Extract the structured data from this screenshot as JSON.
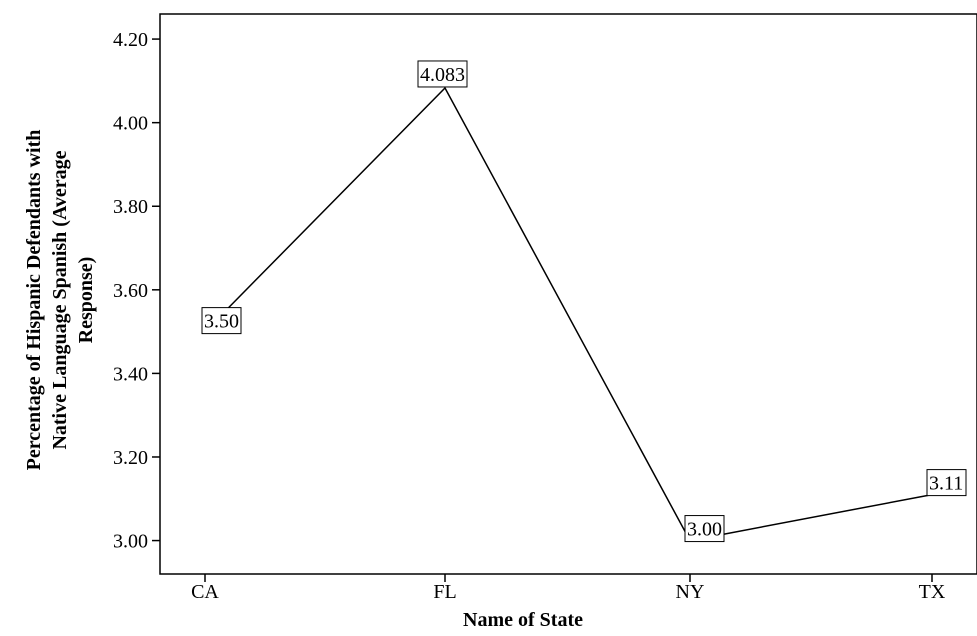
{
  "chart_data": {
    "type": "line",
    "title": "",
    "xlabel": "Name of State",
    "ylabel_lines": [
      "Percentage of Hispanic Defendants with",
      "Native Language Spanish (Average",
      "Response)"
    ],
    "categories": [
      "CA",
      "FL",
      "NY",
      "TX"
    ],
    "values": [
      3.5,
      4.083,
      3.0,
      3.11
    ],
    "data_labels": [
      "3.50",
      "4.083",
      "3.00",
      "3.11"
    ],
    "ylim": [
      2.92,
      4.26
    ],
    "y_ticks": [
      3.0,
      3.2,
      3.4,
      3.6,
      3.8,
      4.0,
      4.2
    ],
    "y_tick_labels": [
      "3.00",
      "3.20",
      "3.40",
      "3.60",
      "3.80",
      "4.00",
      "4.20"
    ],
    "grid": false,
    "legend": "none",
    "line_color": "#000000"
  }
}
